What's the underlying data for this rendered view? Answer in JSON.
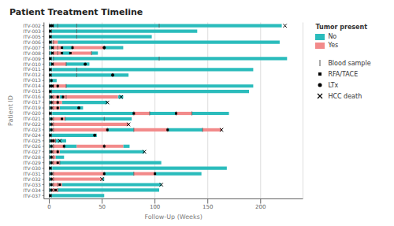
{
  "chart_data": {
    "type": "swimmer",
    "title": "Patient Treatment Timeline",
    "x_label": "Follow-Up (Weeks)",
    "y_label": "Patient ID",
    "orientation": "horizontal",
    "categories": [
      "ITV-002",
      "ITV-003",
      "ITV-005",
      "ITV-006",
      "ITV-007",
      "ITV-008",
      "ITV-009",
      "ITV-010",
      "ITV-011",
      "ITV-012",
      "ITV-013",
      "ITV-014",
      "ITV-015",
      "ITV-016",
      "ITV-017",
      "ITV-019",
      "ITV-020",
      "ITV-021",
      "ITV-022",
      "ITV-023",
      "ITV-024",
      "ITV-025",
      "ITV-026",
      "ITV-027",
      "ITV-028",
      "ITV-029",
      "ITV-030",
      "ITV-031",
      "ITV-032",
      "ITV-033",
      "ITV-034",
      "ITV-037"
    ],
    "xlim": [
      -5,
      240
    ],
    "xticks": [
      0,
      50,
      100,
      150,
      200
    ],
    "grid": true,
    "legend": "right",
    "legend_title": "Tumor present",
    "series": [
      {
        "name": "No",
        "type": "bar",
        "color": "#2BBCBC",
        "values": [
          [
            [
              0,
              2
            ],
            [
              2,
              220
            ]
          ],
          [
            [
              0,
              2
            ],
            [
              2,
              140
            ]
          ],
          [
            [
              0,
              97
            ]
          ],
          [
            [
              0,
              3
            ],
            [
              8,
              218
            ]
          ],
          [
            [
              0,
              3
            ],
            [
              12,
              22
            ],
            [
              52,
              70
            ]
          ],
          [
            [
              0,
              3
            ],
            [
              12,
              20
            ],
            [
              40,
              46
            ]
          ],
          [
            [
              0,
              3
            ],
            [
              3,
              225
            ]
          ],
          [
            [
              0,
              3
            ],
            [
              16,
              38
            ]
          ],
          [
            [
              0,
              3
            ],
            [
              3,
              193
            ]
          ],
          [
            [
              0,
              75
            ]
          ],
          [
            [
              0,
              7
            ]
          ],
          [
            [
              0,
              3
            ],
            [
              16,
              193
            ]
          ],
          [
            [
              0,
              189
            ]
          ],
          [
            [
              0,
              2
            ],
            [
              10,
              13
            ],
            [
              65,
              70
            ]
          ],
          [
            [
              0,
              2
            ],
            [
              12,
              55
            ]
          ],
          [
            [
              0,
              2
            ],
            [
              10,
              32
            ]
          ],
          [
            [
              0,
              3
            ],
            [
              3,
              80
            ],
            [
              95,
              120
            ],
            [
              135,
              170
            ]
          ],
          [
            [
              0,
              3
            ],
            [
              15,
              78
            ]
          ],
          [
            [
              0,
              2
            ]
          ],
          [
            [
              0,
              3
            ],
            [
              55,
              80
            ],
            [
              112,
              145
            ]
          ],
          [
            [
              0,
              45
            ]
          ],
          [
            [
              0,
              2
            ],
            [
              6,
              16
            ]
          ],
          [
            [
              0,
              3
            ],
            [
              14,
              26
            ],
            [
              70,
              76
            ]
          ],
          [
            [
              0,
              2
            ],
            [
              10,
              90
            ]
          ],
          [
            [
              0,
              2
            ],
            [
              6,
              14
            ]
          ],
          [
            [
              0,
              2
            ],
            [
              10,
              106
            ]
          ],
          [
            [
              0,
              3
            ],
            [
              3,
              168
            ]
          ],
          [
            [
              0,
              3
            ],
            [
              52,
              80
            ],
            [
              100,
              144
            ]
          ],
          [
            [
              0,
              2
            ],
            [
              50,
              52
            ]
          ],
          [
            [
              0,
              3
            ],
            [
              12,
              106
            ]
          ],
          [
            [
              0,
              2
            ],
            [
              8,
              104
            ]
          ],
          [
            [
              0,
              52
            ]
          ]
        ]
      },
      {
        "name": "Yes",
        "type": "bar",
        "color": "#F28A8A",
        "values": [
          [],
          [],
          [],
          [
            [
              3,
              8
            ]
          ],
          [
            [
              3,
              12
            ],
            [
              22,
              52
            ]
          ],
          [
            [
              3,
              12
            ],
            [
              20,
              40
            ]
          ],
          [],
          [
            [
              3,
              16
            ]
          ],
          [],
          [],
          [],
          [
            [
              3,
              16
            ]
          ],
          [],
          [
            [
              2,
              10
            ],
            [
              13,
              65
            ]
          ],
          [
            [
              2,
              12
            ]
          ],
          [
            [
              2,
              10
            ]
          ],
          [
            [
              80,
              95
            ],
            [
              120,
              135
            ]
          ],
          [
            [
              3,
              15
            ]
          ],
          [
            [
              2,
              75
            ]
          ],
          [
            [
              3,
              55
            ],
            [
              80,
              112
            ],
            [
              145,
              163
            ]
          ],
          [],
          [
            [
              2,
              6
            ]
          ],
          [
            [
              3,
              14
            ],
            [
              26,
              70
            ]
          ],
          [
            [
              2,
              10
            ]
          ],
          [
            [
              2,
              6
            ]
          ],
          [
            [
              2,
              10
            ]
          ],
          [],
          [
            [
              3,
              52
            ],
            [
              80,
              100
            ]
          ],
          [
            [
              2,
              50
            ]
          ],
          [
            [
              3,
              12
            ]
          ],
          [
            [
              2,
              8
            ]
          ],
          []
        ]
      },
      {
        "name": "Blood sample",
        "type": "scatter",
        "marker": "tick",
        "color": "#555555",
        "values": [
          [
            0,
            2,
            4,
            8,
            26,
            104
          ],
          [
            0,
            2,
            26
          ],
          [
            0,
            2,
            26
          ],
          [
            0,
            2,
            4
          ],
          [
            0,
            2,
            4,
            8,
            22,
            52
          ],
          [
            0,
            2,
            4,
            8,
            40
          ],
          [
            0,
            2,
            4,
            104
          ],
          [
            0,
            2,
            4,
            16
          ],
          [
            0,
            2,
            26
          ],
          [
            0,
            2,
            26,
            60
          ],
          [
            0,
            2
          ],
          [
            0,
            2,
            4,
            8,
            16
          ],
          [
            0,
            2
          ],
          [
            0,
            2,
            4,
            8,
            13,
            16
          ],
          [
            0,
            2,
            4,
            8
          ],
          [
            0,
            2,
            4,
            8
          ],
          [
            0,
            2,
            80,
            95,
            120,
            135
          ],
          [
            0,
            2,
            4,
            15,
            52
          ],
          [
            0,
            2,
            4
          ],
          [
            0,
            2,
            4,
            55,
            80,
            112,
            145
          ],
          [
            0,
            2
          ],
          [
            0,
            2,
            4,
            6
          ],
          [
            0,
            2,
            4,
            14,
            52
          ],
          [
            0,
            2,
            4,
            8
          ],
          [
            0,
            2,
            4
          ],
          [
            0,
            2,
            4,
            10
          ],
          [
            0,
            2
          ],
          [
            0,
            2,
            4,
            52,
            80,
            100
          ],
          [
            0,
            2,
            4
          ],
          [
            0,
            2,
            4,
            8
          ],
          [
            0,
            2,
            4,
            8
          ],
          [
            0,
            2
          ]
        ]
      },
      {
        "name": "RFA/TACE",
        "type": "scatter",
        "marker": "square",
        "color": "#000000",
        "values": [
          [
            1,
            3
          ],
          [
            1
          ],
          [
            1
          ],
          [
            1
          ],
          [
            3,
            12,
            22
          ],
          [
            3,
            12,
            20
          ],
          [
            1
          ],
          [
            3
          ],
          [
            1
          ],
          [
            1
          ],
          [
            2
          ],
          [
            1,
            3,
            8
          ],
          [
            1
          ],
          [
            2,
            8,
            13
          ],
          [
            2,
            8
          ],
          [
            2,
            8
          ],
          [
            1,
            80,
            120
          ],
          [
            2,
            12
          ],
          [
            2
          ],
          [
            2,
            55,
            112
          ],
          [
            1
          ],
          [
            2,
            4
          ],
          [
            2,
            14,
            52
          ],
          [
            2,
            8
          ],
          [
            2
          ],
          [
            2,
            8
          ],
          [
            1
          ],
          [
            2,
            52,
            100
          ],
          [
            2
          ],
          [
            2,
            10
          ],
          [
            2,
            6
          ],
          [
            1
          ]
        ]
      },
      {
        "name": "LTx",
        "type": "scatter",
        "marker": "circle",
        "color": "#000000",
        "values": [
          [],
          [],
          [],
          [],
          [
            52
          ],
          [],
          [],
          [
            34
          ],
          [],
          [
            60
          ],
          [],
          [],
          [],
          [],
          [],
          [
            28
          ],
          [],
          [],
          [],
          [],
          [
            43
          ],
          [],
          [],
          [],
          [],
          [],
          [],
          [],
          [],
          [],
          [],
          []
        ]
      },
      {
        "name": "HCC death",
        "type": "scatter",
        "marker": "x",
        "color": "#000000",
        "values": [
          [
            223
          ],
          [],
          [],
          [],
          [],
          [],
          [],
          [],
          [],
          [],
          [],
          [],
          [],
          [
            68
          ],
          [
            55
          ],
          [],
          [],
          [],
          [
            75
          ],
          [
            163
          ],
          [],
          [
            10
          ],
          [],
          [
            90
          ],
          [],
          [],
          [],
          [],
          [
            50
          ],
          [
            106
          ],
          [],
          []
        ]
      }
    ]
  }
}
